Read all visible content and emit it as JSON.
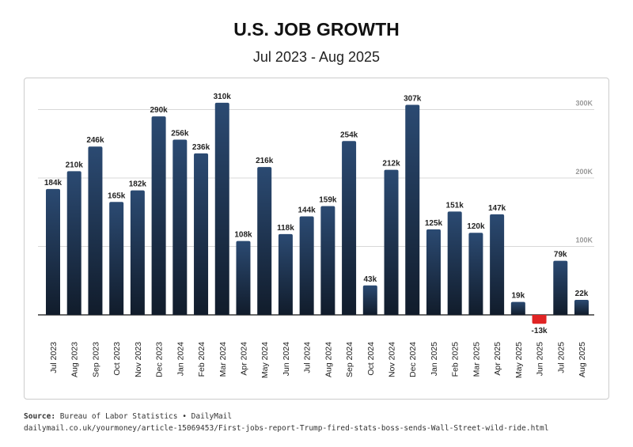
{
  "chart_data": {
    "type": "bar",
    "title": "U.S. JOB GROWTH",
    "subtitle": "Jul 2023 - Aug 2025",
    "categories": [
      "Jul 2023",
      "Aug 2023",
      "Sep 2023",
      "Oct 2023",
      "Nov 2023",
      "Dec 2023",
      "Jan 2024",
      "Feb 2024",
      "Mar 2024",
      "Apr 2024",
      "May 2024",
      "Jun 2024",
      "Jul 2024",
      "Aug 2024",
      "Sep 2024",
      "Oct 2024",
      "Nov 2024",
      "Dec 2024",
      "Jan 2025",
      "Feb 2025",
      "Mar 2025",
      "Apr 2025",
      "May 2025",
      "Jun 2025",
      "Jul 2025",
      "Aug 2025"
    ],
    "values": [
      184,
      210,
      246,
      165,
      182,
      290,
      256,
      236,
      310,
      108,
      216,
      118,
      144,
      159,
      254,
      43,
      212,
      307,
      125,
      151,
      120,
      147,
      19,
      -13,
      79,
      22
    ],
    "data_labels": [
      "184k",
      "210k",
      "246k",
      "165k",
      "182k",
      "290k",
      "256k",
      "236k",
      "310k",
      "108k",
      "216k",
      "118k",
      "144k",
      "159k",
      "254k",
      "43k",
      "212k",
      "307k",
      "125k",
      "151k",
      "120k",
      "147k",
      "19k",
      "-13k",
      "79k",
      "22k"
    ],
    "unit": "thousands of jobs",
    "y_ticks": [
      100,
      200,
      300
    ],
    "y_tick_labels": [
      "100K",
      "200K",
      "300K"
    ],
    "ylim": [
      -30,
      330
    ],
    "grid": true,
    "xlabel": "",
    "ylabel": "",
    "colors": {
      "positive_top": "#2b4a72",
      "positive_bottom": "#111c2b",
      "negative": "#e02424"
    }
  },
  "source": {
    "label": "Source:",
    "text": "Bureau of Labor Statistics • DailyMail",
    "url": "dailymail.co.uk/yourmoney/article-15069453/First-jobs-report-Trump-fired-stats-boss-sends-Wall-Street-wild-ride.html"
  }
}
